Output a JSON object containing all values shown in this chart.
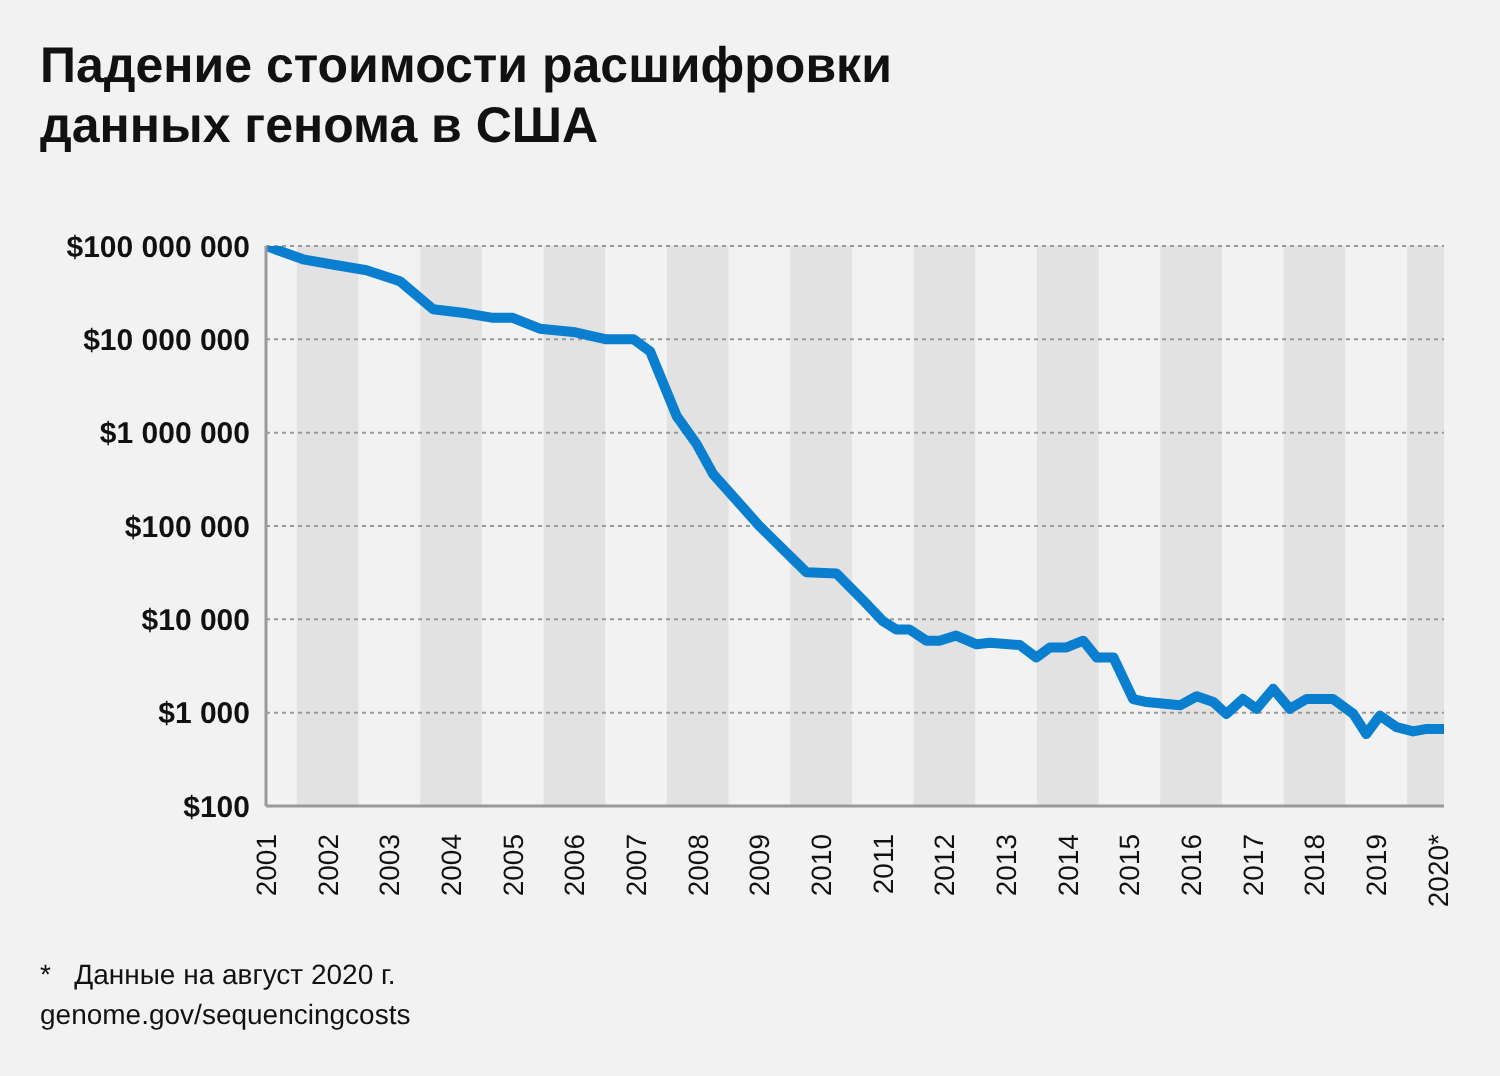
{
  "chart_data": {
    "type": "line",
    "title": "Падение стоимости расшифровки данных генома в США",
    "x": [
      2001.0,
      2001.6,
      2002.1,
      2002.63,
      2003.17,
      2003.71,
      2004.25,
      2004.68,
      2005.0,
      2005.44,
      2005.98,
      2006.52,
      2006.96,
      2007.23,
      2007.66,
      2007.98,
      2008.25,
      2009.0,
      2009.76,
      2010.25,
      2010.68,
      2011.0,
      2011.22,
      2011.43,
      2011.71,
      2011.92,
      2012.19,
      2012.52,
      2012.74,
      2013.22,
      2013.49,
      2013.71,
      2013.98,
      2014.25,
      2014.47,
      2014.74,
      2015.06,
      2015.28,
      2015.82,
      2016.09,
      2016.36,
      2016.57,
      2016.84,
      2017.06,
      2017.33,
      2017.6,
      2017.87,
      2018.3,
      2018.63,
      2018.84,
      2019.06,
      2019.33,
      2019.6,
      2019.82,
      2020.09
    ],
    "series": [
      {
        "color": "#0a7fd0",
        "values": [
          100000000,
          72000000,
          63000000,
          55000000,
          42000000,
          21000000,
          19000000,
          17000000,
          17000000,
          13000000,
          12000000,
          10000000,
          10000000,
          7400000,
          1500000,
          760000,
          360000,
          100000,
          32000,
          31000,
          16000,
          9600,
          7800,
          7800,
          5900,
          5900,
          6700,
          5400,
          5600,
          5300,
          3900,
          5000,
          5000,
          5900,
          3900,
          3900,
          1400,
          1300,
          1200,
          1500,
          1300,
          970,
          1400,
          1100,
          1800,
          1100,
          1400,
          1400,
          970,
          590,
          930,
          700,
          630,
          670,
          670
        ]
      }
    ],
    "log": true,
    "ylim": [
      100,
      100000000
    ],
    "yticks": [
      {
        "value": 100,
        "label": "$100"
      },
      {
        "value": 1000,
        "label": "$1 000"
      },
      {
        "value": 10000,
        "label": "$10 000"
      },
      {
        "value": 100000,
        "label": "$100 000"
      },
      {
        "value": 1000000,
        "label": "$1 000 000"
      },
      {
        "value": 10000000,
        "label": "$10 000 000"
      },
      {
        "value": 100000000,
        "label": "$100 000 000"
      }
    ],
    "xlim": [
      2001,
      2020.1
    ],
    "xticks": [
      2001,
      2002,
      2003,
      2004,
      2005,
      2006,
      2007,
      2008,
      2009,
      2010,
      2011,
      2012,
      2013,
      2014,
      2015,
      2016,
      2017,
      2018,
      2019,
      {
        "value": 2020,
        "label": "2020*"
      }
    ],
    "bands": [
      {
        "axis": "x",
        "from": 2001.5,
        "to": 2002.5,
        "color": "#e2e2e2"
      },
      {
        "axis": "x",
        "from": 2003.5,
        "to": 2004.5,
        "color": "#e2e2e2"
      },
      {
        "axis": "x",
        "from": 2005.5,
        "to": 2006.5,
        "color": "#e2e2e2"
      },
      {
        "axis": "x",
        "from": 2007.5,
        "to": 2008.5,
        "color": "#e2e2e2"
      },
      {
        "axis": "x",
        "from": 2009.5,
        "to": 2010.5,
        "color": "#e2e2e2"
      },
      {
        "axis": "x",
        "from": 2011.5,
        "to": 2012.5,
        "color": "#e2e2e2"
      },
      {
        "axis": "x",
        "from": 2013.5,
        "to": 2014.5,
        "color": "#e2e2e2"
      },
      {
        "axis": "x",
        "from": 2015.5,
        "to": 2016.5,
        "color": "#e2e2e2"
      },
      {
        "axis": "x",
        "from": 2017.5,
        "to": 2018.5,
        "color": "#e2e2e2"
      },
      {
        "axis": "x",
        "from": 2019.5,
        "to": 2020.1,
        "color": "#e2e2e2"
      }
    ],
    "grid": "y",
    "legend": false,
    "marker": "none",
    "line_style": "solid",
    "annotations": [
      "*   Данные на август 2020 г.",
      "genome.gov/sequencingcosts"
    ]
  }
}
